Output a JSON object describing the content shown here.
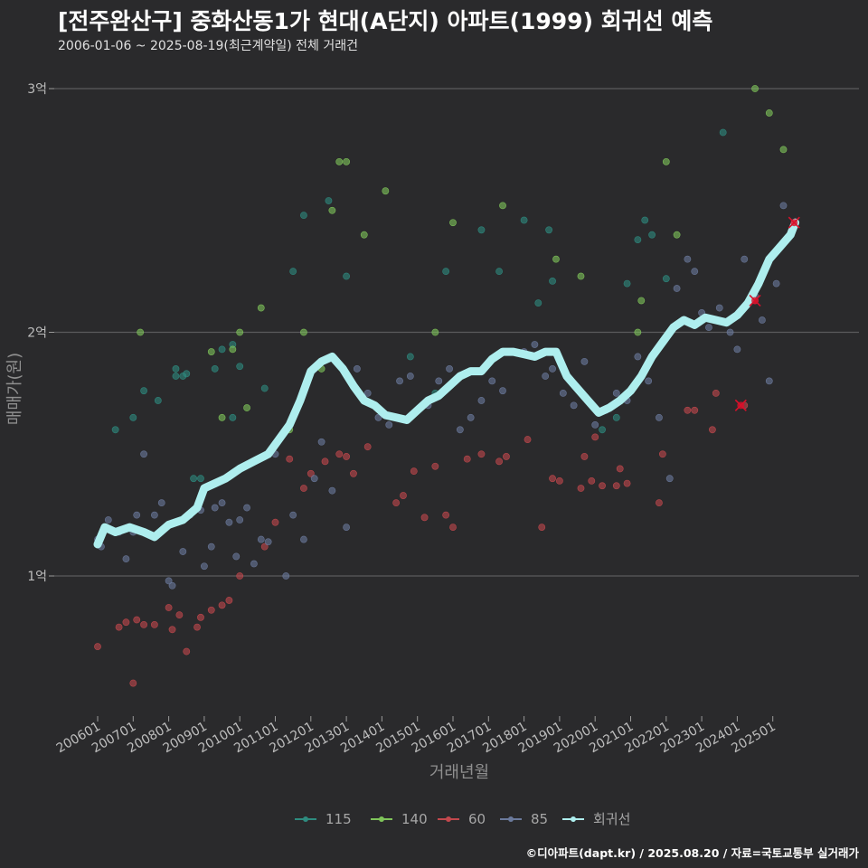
{
  "header": {
    "title": "[전주완산구] 중화산동1가 현대(A단지) 아파트(1999) 회귀선 예측",
    "subtitle": "2006-01-06 ~ 2025-08-19(최근계약일) 전체 거래건"
  },
  "footer": {
    "credit": "©디아파트(dapt.kr) / 2025.08.20 / 자료=국토교통부 실거래가"
  },
  "colors": {
    "s115": "#2e8b7f",
    "s140": "#7fc45a",
    "s60": "#c2484d",
    "s85": "#6b7a9c",
    "trend": "#aeeeee",
    "recent": "#d8102a"
  },
  "chart_data": {
    "type": "scatter",
    "title": "[전주완산구] 중화산동1가 현대(A단지) 아파트(1999) 회귀선 예측",
    "subtitle": "2006-01-06 ~ 2025-08-19(최근계약일) 전체 거래건",
    "xlabel": "거래년월",
    "ylabel": "매매가(원)",
    "x_ticks": [
      "200601",
      "200701",
      "200801",
      "200901",
      "201001",
      "201101",
      "201201",
      "201301",
      "201401",
      "201501",
      "201601",
      "201701",
      "201801",
      "201901",
      "202001",
      "202101",
      "202201",
      "202301",
      "202401",
      "202501"
    ],
    "y_ticks": [
      {
        "value": 1,
        "label": "1억"
      },
      {
        "value": 2,
        "label": "2억"
      },
      {
        "value": 3,
        "label": "3억"
      }
    ],
    "xlim": [
      2006.0,
      2025.67
    ],
    "ylim": [
      0.45,
      3.12
    ],
    "grid": true,
    "legend_position": "bottom",
    "legend": [
      "115",
      "140",
      "60",
      "85",
      "회귀선"
    ],
    "series": [
      {
        "name": "115",
        "points": [
          [
            2006.5,
            1.6
          ],
          [
            2007.0,
            1.65
          ],
          [
            2007.3,
            1.76
          ],
          [
            2007.7,
            1.72
          ],
          [
            2008.2,
            1.85
          ],
          [
            2008.2,
            1.82
          ],
          [
            2008.4,
            1.82
          ],
          [
            2008.5,
            1.83
          ],
          [
            2008.7,
            1.4
          ],
          [
            2008.9,
            1.4
          ],
          [
            2009.3,
            1.85
          ],
          [
            2009.5,
            1.93
          ],
          [
            2009.8,
            1.65
          ],
          [
            2009.8,
            1.95
          ],
          [
            2010.0,
            1.86
          ],
          [
            2010.7,
            1.77
          ],
          [
            2011.5,
            2.25
          ],
          [
            2011.8,
            2.48
          ],
          [
            2012.5,
            2.54
          ],
          [
            2013.0,
            2.23
          ],
          [
            2014.8,
            1.9
          ],
          [
            2015.5,
            1.75
          ],
          [
            2015.8,
            2.25
          ],
          [
            2016.8,
            2.42
          ],
          [
            2017.3,
            2.25
          ],
          [
            2018.0,
            2.46
          ],
          [
            2018.4,
            2.12
          ],
          [
            2018.7,
            2.42
          ],
          [
            2018.8,
            2.21
          ],
          [
            2020.2,
            1.6
          ],
          [
            2020.6,
            1.65
          ],
          [
            2020.9,
            2.2
          ],
          [
            2021.2,
            2.38
          ],
          [
            2021.4,
            2.46
          ],
          [
            2021.6,
            2.4
          ],
          [
            2022.0,
            2.22
          ],
          [
            2023.6,
            2.82
          ]
        ]
      },
      {
        "name": "140",
        "points": [
          [
            2007.2,
            2.0
          ],
          [
            2009.2,
            1.92
          ],
          [
            2009.5,
            1.65
          ],
          [
            2009.8,
            1.93
          ],
          [
            2010.0,
            2.0
          ],
          [
            2010.2,
            1.69
          ],
          [
            2010.6,
            2.1
          ],
          [
            2011.4,
            1.6
          ],
          [
            2011.8,
            2.0
          ],
          [
            2012.3,
            1.85
          ],
          [
            2012.6,
            2.5
          ],
          [
            2012.8,
            2.7
          ],
          [
            2013.0,
            2.7
          ],
          [
            2013.5,
            2.4
          ],
          [
            2014.1,
            2.58
          ],
          [
            2015.5,
            2.0
          ],
          [
            2016.0,
            2.45
          ],
          [
            2017.4,
            2.52
          ],
          [
            2018.9,
            2.3
          ],
          [
            2019.6,
            2.23
          ],
          [
            2021.2,
            2.0
          ],
          [
            2021.3,
            2.13
          ],
          [
            2022.0,
            2.7
          ],
          [
            2022.3,
            2.4
          ],
          [
            2024.5,
            3.0
          ],
          [
            2024.9,
            2.9
          ],
          [
            2025.3,
            2.75
          ]
        ]
      },
      {
        "name": "60",
        "points": [
          [
            2006.0,
            0.71
          ],
          [
            2006.6,
            0.79
          ],
          [
            2006.8,
            0.81
          ],
          [
            2007.0,
            0.56
          ],
          [
            2007.1,
            0.82
          ],
          [
            2007.3,
            0.8
          ],
          [
            2007.6,
            0.8
          ],
          [
            2008.0,
            0.87
          ],
          [
            2008.1,
            0.78
          ],
          [
            2008.3,
            0.84
          ],
          [
            2008.5,
            0.69
          ],
          [
            2008.8,
            0.79
          ],
          [
            2008.9,
            0.83
          ],
          [
            2009.2,
            0.86
          ],
          [
            2009.5,
            0.88
          ],
          [
            2009.7,
            0.9
          ],
          [
            2010.0,
            1.0
          ],
          [
            2010.7,
            1.12
          ],
          [
            2011.0,
            1.22
          ],
          [
            2011.4,
            1.48
          ],
          [
            2011.8,
            1.36
          ],
          [
            2012.0,
            1.42
          ],
          [
            2012.4,
            1.47
          ],
          [
            2012.8,
            1.5
          ],
          [
            2013.0,
            1.49
          ],
          [
            2013.2,
            1.42
          ],
          [
            2013.6,
            1.53
          ],
          [
            2014.4,
            1.3
          ],
          [
            2014.6,
            1.33
          ],
          [
            2014.9,
            1.43
          ],
          [
            2015.2,
            1.24
          ],
          [
            2015.5,
            1.45
          ],
          [
            2015.8,
            1.25
          ],
          [
            2016.0,
            1.2
          ],
          [
            2016.4,
            1.48
          ],
          [
            2016.8,
            1.5
          ],
          [
            2017.3,
            1.47
          ],
          [
            2017.5,
            1.49
          ],
          [
            2018.1,
            1.56
          ],
          [
            2018.5,
            1.2
          ],
          [
            2018.8,
            1.4
          ],
          [
            2019.0,
            1.39
          ],
          [
            2019.6,
            1.36
          ],
          [
            2019.7,
            1.49
          ],
          [
            2019.9,
            1.39
          ],
          [
            2020.0,
            1.57
          ],
          [
            2020.2,
            1.37
          ],
          [
            2020.6,
            1.37
          ],
          [
            2020.7,
            1.44
          ],
          [
            2020.9,
            1.38
          ],
          [
            2021.8,
            1.3
          ],
          [
            2021.9,
            1.5
          ],
          [
            2022.6,
            1.68
          ],
          [
            2022.8,
            1.68
          ],
          [
            2023.3,
            1.6
          ],
          [
            2023.4,
            1.75
          ],
          [
            2024.2,
            1.7
          ],
          [
            2024.5,
            2.13
          ]
        ]
      },
      {
        "name": "85",
        "points": [
          [
            2006.0,
            1.15
          ],
          [
            2006.1,
            1.12
          ],
          [
            2006.3,
            1.23
          ],
          [
            2006.6,
            1.18
          ],
          [
            2006.8,
            1.07
          ],
          [
            2007.0,
            1.18
          ],
          [
            2007.1,
            1.25
          ],
          [
            2007.3,
            1.5
          ],
          [
            2007.6,
            1.25
          ],
          [
            2007.8,
            1.3
          ],
          [
            2008.0,
            0.98
          ],
          [
            2008.1,
            0.96
          ],
          [
            2008.4,
            1.1
          ],
          [
            2008.6,
            1.25
          ],
          [
            2008.9,
            1.27
          ],
          [
            2009.0,
            1.04
          ],
          [
            2009.2,
            1.12
          ],
          [
            2009.3,
            1.28
          ],
          [
            2009.5,
            1.3
          ],
          [
            2009.7,
            1.22
          ],
          [
            2009.9,
            1.08
          ],
          [
            2010.0,
            1.23
          ],
          [
            2010.2,
            1.28
          ],
          [
            2010.4,
            1.05
          ],
          [
            2010.6,
            1.15
          ],
          [
            2010.8,
            1.14
          ],
          [
            2011.0,
            1.5
          ],
          [
            2011.3,
            1.0
          ],
          [
            2011.5,
            1.25
          ],
          [
            2011.8,
            1.15
          ],
          [
            2012.1,
            1.4
          ],
          [
            2012.3,
            1.55
          ],
          [
            2012.6,
            1.35
          ],
          [
            2013.0,
            1.2
          ],
          [
            2013.3,
            1.85
          ],
          [
            2013.6,
            1.75
          ],
          [
            2013.9,
            1.65
          ],
          [
            2014.2,
            1.62
          ],
          [
            2014.5,
            1.8
          ],
          [
            2014.8,
            1.82
          ],
          [
            2015.0,
            1.68
          ],
          [
            2015.3,
            1.7
          ],
          [
            2015.6,
            1.8
          ],
          [
            2015.9,
            1.85
          ],
          [
            2016.2,
            1.6
          ],
          [
            2016.5,
            1.65
          ],
          [
            2016.8,
            1.72
          ],
          [
            2017.1,
            1.8
          ],
          [
            2017.4,
            1.76
          ],
          [
            2017.7,
            1.92
          ],
          [
            2018.0,
            1.92
          ],
          [
            2018.3,
            1.95
          ],
          [
            2018.6,
            1.82
          ],
          [
            2018.8,
            1.85
          ],
          [
            2019.1,
            1.75
          ],
          [
            2019.4,
            1.7
          ],
          [
            2019.7,
            1.88
          ],
          [
            2020.0,
            1.62
          ],
          [
            2020.3,
            1.68
          ],
          [
            2020.6,
            1.75
          ],
          [
            2020.9,
            1.72
          ],
          [
            2021.2,
            1.9
          ],
          [
            2021.5,
            1.8
          ],
          [
            2021.8,
            1.65
          ],
          [
            2022.1,
            1.4
          ],
          [
            2022.3,
            2.18
          ],
          [
            2022.6,
            2.3
          ],
          [
            2022.8,
            2.25
          ],
          [
            2023.0,
            2.08
          ],
          [
            2023.2,
            2.02
          ],
          [
            2023.5,
            2.1
          ],
          [
            2023.8,
            2.0
          ],
          [
            2024.0,
            1.93
          ],
          [
            2024.2,
            2.3
          ],
          [
            2024.5,
            2.15
          ],
          [
            2024.7,
            2.05
          ],
          [
            2024.9,
            1.8
          ],
          [
            2025.1,
            2.2
          ],
          [
            2025.3,
            2.52
          ]
        ]
      }
    ],
    "recent_points": [
      [
        2024.1,
        1.7
      ],
      [
        2024.5,
        2.13
      ],
      [
        2025.6,
        2.45
      ]
    ],
    "trend": {
      "name": "회귀선",
      "points": [
        [
          2006.0,
          1.13
        ],
        [
          2006.2,
          1.2
        ],
        [
          2006.5,
          1.18
        ],
        [
          2006.9,
          1.2
        ],
        [
          2007.3,
          1.18
        ],
        [
          2007.6,
          1.16
        ],
        [
          2008.0,
          1.21
        ],
        [
          2008.4,
          1.23
        ],
        [
          2008.8,
          1.28
        ],
        [
          2009.0,
          1.36
        ],
        [
          2009.3,
          1.38
        ],
        [
          2009.6,
          1.4
        ],
        [
          2010.0,
          1.44
        ],
        [
          2010.4,
          1.47
        ],
        [
          2010.8,
          1.5
        ],
        [
          2011.1,
          1.56
        ],
        [
          2011.4,
          1.62
        ],
        [
          2011.7,
          1.72
        ],
        [
          2012.0,
          1.84
        ],
        [
          2012.3,
          1.88
        ],
        [
          2012.6,
          1.9
        ],
        [
          2012.9,
          1.85
        ],
        [
          2013.2,
          1.78
        ],
        [
          2013.5,
          1.72
        ],
        [
          2013.8,
          1.7
        ],
        [
          2014.1,
          1.66
        ],
        [
          2014.4,
          1.65
        ],
        [
          2014.7,
          1.64
        ],
        [
          2015.0,
          1.68
        ],
        [
          2015.3,
          1.72
        ],
        [
          2015.6,
          1.74
        ],
        [
          2015.9,
          1.78
        ],
        [
          2016.2,
          1.82
        ],
        [
          2016.5,
          1.84
        ],
        [
          2016.8,
          1.84
        ],
        [
          2017.1,
          1.89
        ],
        [
          2017.4,
          1.92
        ],
        [
          2017.7,
          1.92
        ],
        [
          2018.0,
          1.91
        ],
        [
          2018.3,
          1.9
        ],
        [
          2018.6,
          1.92
        ],
        [
          2018.9,
          1.92
        ],
        [
          2019.2,
          1.82
        ],
        [
          2019.5,
          1.77
        ],
        [
          2019.8,
          1.72
        ],
        [
          2020.1,
          1.67
        ],
        [
          2020.4,
          1.69
        ],
        [
          2020.7,
          1.72
        ],
        [
          2021.0,
          1.76
        ],
        [
          2021.3,
          1.82
        ],
        [
          2021.6,
          1.9
        ],
        [
          2021.9,
          1.96
        ],
        [
          2022.2,
          2.02
        ],
        [
          2022.5,
          2.05
        ],
        [
          2022.8,
          2.03
        ],
        [
          2023.1,
          2.06
        ],
        [
          2023.4,
          2.05
        ],
        [
          2023.7,
          2.04
        ],
        [
          2024.0,
          2.07
        ],
        [
          2024.3,
          2.12
        ],
        [
          2024.6,
          2.2
        ],
        [
          2024.9,
          2.3
        ],
        [
          2025.2,
          2.35
        ],
        [
          2025.5,
          2.4
        ],
        [
          2025.63,
          2.45
        ]
      ]
    }
  }
}
